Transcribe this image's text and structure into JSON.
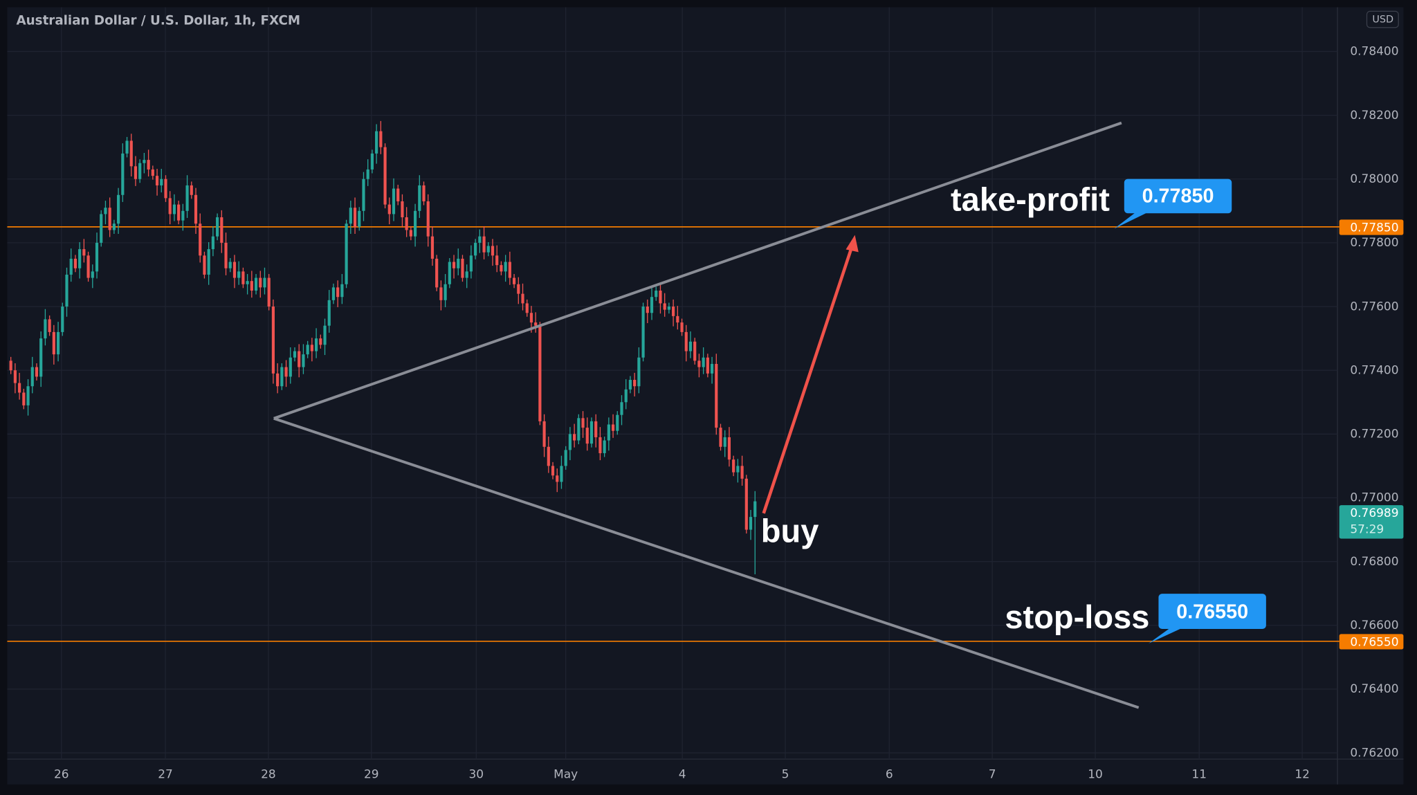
{
  "header": {
    "title": "Australian Dollar / U.S. Dollar, 1h, FXCM",
    "currency": "USD"
  },
  "colors": {
    "background": "#131722",
    "up": "#26a69a",
    "down": "#ef5350",
    "level_line": "#f57c00",
    "label_box": "#2196f3",
    "trendline": "#8a8d96",
    "arrow": "#f0524a"
  },
  "annotations": {
    "take_profit_label": "take-profit",
    "take_profit_value": "0.77850",
    "stop_loss_label": "stop-loss",
    "stop_loss_value": "0.76550",
    "buy_label": "buy"
  },
  "price_tags": {
    "take_profit": "0.77850",
    "stop_loss": "0.76550",
    "last_price": "0.76989",
    "countdown": "57:29"
  },
  "chart_data": {
    "type": "candlestick",
    "title": "Australian Dollar / U.S. Dollar, 1h, FXCM",
    "ylim": [
      0.762,
      0.784
    ],
    "y_ticks": [
      "0.78400",
      "0.78200",
      "0.78000",
      "0.77800",
      "0.77600",
      "0.77400",
      "0.77200",
      "0.77000",
      "0.76800",
      "0.76600",
      "0.76400",
      "0.76200"
    ],
    "x_ticks": [
      "26",
      "27",
      "28",
      "29",
      "30",
      "May",
      "4",
      "5",
      "6",
      "7",
      "10",
      "11",
      "12"
    ],
    "grid": true,
    "horizontal_levels": [
      0.7785,
      0.7655
    ],
    "closes": [
      0.774,
      0.7736,
      0.7733,
      0.7729,
      0.7735,
      0.7741,
      0.7738,
      0.775,
      0.7756,
      0.7752,
      0.7745,
      0.7752,
      0.776,
      0.777,
      0.7775,
      0.7772,
      0.7778,
      0.7776,
      0.7769,
      0.7771,
      0.778,
      0.7789,
      0.7791,
      0.7784,
      0.7786,
      0.7795,
      0.7808,
      0.7812,
      0.7804,
      0.78,
      0.7805,
      0.7806,
      0.7803,
      0.7801,
      0.7798,
      0.78,
      0.7794,
      0.7789,
      0.7792,
      0.7787,
      0.779,
      0.7798,
      0.7795,
      0.7786,
      0.7776,
      0.777,
      0.7778,
      0.7782,
      0.7788,
      0.778,
      0.7772,
      0.7774,
      0.7769,
      0.7771,
      0.7767,
      0.7768,
      0.7765,
      0.7769,
      0.7766,
      0.7769,
      0.776,
      0.7739,
      0.7735,
      0.7741,
      0.7738,
      0.7744,
      0.7746,
      0.7741,
      0.7745,
      0.7748,
      0.7746,
      0.775,
      0.7748,
      0.7754,
      0.7762,
      0.7766,
      0.7763,
      0.7767,
      0.7786,
      0.7791,
      0.7785,
      0.779,
      0.78,
      0.7803,
      0.7808,
      0.7815,
      0.781,
      0.7792,
      0.7789,
      0.7797,
      0.7793,
      0.7788,
      0.7784,
      0.7782,
      0.779,
      0.7798,
      0.7793,
      0.7782,
      0.7775,
      0.7766,
      0.7762,
      0.7767,
      0.7774,
      0.7772,
      0.7775,
      0.7769,
      0.7771,
      0.7776,
      0.778,
      0.7782,
      0.7777,
      0.7779,
      0.7776,
      0.7773,
      0.7771,
      0.7774,
      0.7769,
      0.7767,
      0.7764,
      0.7761,
      0.7758,
      0.7755,
      0.7754,
      0.7724,
      0.7716,
      0.771,
      0.7707,
      0.7705,
      0.771,
      0.7715,
      0.772,
      0.7718,
      0.7725,
      0.7722,
      0.7717,
      0.7724,
      0.7719,
      0.7714,
      0.7718,
      0.7723,
      0.7721,
      0.7726,
      0.773,
      0.7734,
      0.7737,
      0.7735,
      0.7744,
      0.776,
      0.7758,
      0.7763,
      0.7765,
      0.7761,
      0.7759,
      0.776,
      0.7757,
      0.7755,
      0.7752,
      0.7746,
      0.7749,
      0.7743,
      0.7741,
      0.7744,
      0.7739,
      0.7742,
      0.7722,
      0.7716,
      0.7719,
      0.7712,
      0.7708,
      0.771,
      0.7706,
      0.769,
      0.7694,
      0.76989
    ],
    "last_low": 0.7676
  }
}
